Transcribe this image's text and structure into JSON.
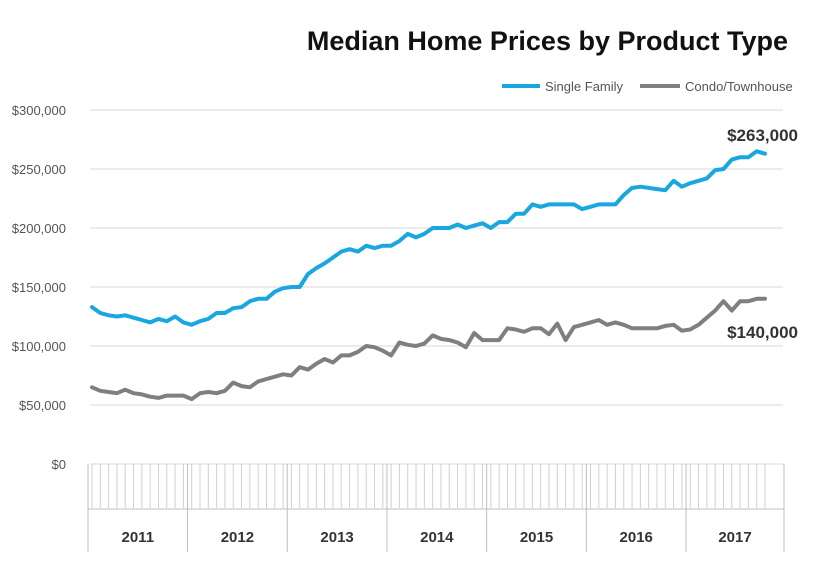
{
  "chart_data": {
    "type": "line",
    "title": "Median Home Prices by Product Type",
    "xlabel": "",
    "ylabel": "",
    "ylim": [
      0,
      300000
    ],
    "y_ticks": [
      "$300,000",
      "$250,000",
      "$200,000",
      "$150,000",
      "$100,000",
      "$50,000",
      "$0"
    ],
    "y_tick_values": [
      300000,
      250000,
      200000,
      150000,
      100000,
      50000,
      0
    ],
    "years": [
      "2011",
      "2012",
      "2013",
      "2014",
      "2015",
      "2016",
      "2017"
    ],
    "grid": "horizontal",
    "legend_position": "top-right",
    "series": [
      {
        "name": "Single Family",
        "color": "#1aa7e0",
        "end_label": "$263,000",
        "values": [
          133000,
          128000,
          126000,
          125000,
          126000,
          124000,
          122000,
          120000,
          123000,
          121000,
          125000,
          120000,
          118000,
          121000,
          123000,
          128000,
          128000,
          132000,
          133000,
          138000,
          140000,
          140000,
          146000,
          149000,
          150000,
          150000,
          161000,
          166000,
          170000,
          175000,
          180000,
          182000,
          180000,
          185000,
          183000,
          185000,
          185000,
          189000,
          195000,
          192000,
          195000,
          200000,
          200000,
          200000,
          203000,
          200000,
          202000,
          204000,
          200000,
          205000,
          205000,
          212000,
          212000,
          220000,
          218000,
          220000,
          220000,
          220000,
          220000,
          216000,
          218000,
          220000,
          220000,
          220000,
          228000,
          234000,
          235000,
          234000,
          233000,
          232000,
          240000,
          235000,
          238000,
          240000,
          242000,
          249000,
          250000,
          258000,
          260000,
          260000,
          265000,
          263000
        ]
      },
      {
        "name": "Condo/Townhouse",
        "color": "#7f7f7f",
        "end_label": "$140,000",
        "values": [
          65000,
          62000,
          61000,
          60000,
          63000,
          60000,
          59000,
          57000,
          56000,
          58000,
          58000,
          58000,
          55000,
          60000,
          61000,
          60000,
          62000,
          69000,
          66000,
          65000,
          70000,
          72000,
          74000,
          76000,
          75000,
          82000,
          80000,
          85000,
          89000,
          86000,
          92000,
          92000,
          95000,
          100000,
          99000,
          96000,
          92000,
          103000,
          101000,
          100000,
          102000,
          109000,
          106000,
          105000,
          103000,
          99000,
          111000,
          105000,
          105000,
          105000,
          115000,
          114000,
          112000,
          115000,
          115000,
          110000,
          119000,
          105000,
          116000,
          118000,
          120000,
          122000,
          118000,
          120000,
          118000,
          115000,
          115000,
          115000,
          115000,
          117000,
          118000,
          113000,
          114000,
          118000,
          124000,
          130000,
          138000,
          130000,
          138000,
          138000,
          140000,
          140000
        ]
      }
    ]
  }
}
